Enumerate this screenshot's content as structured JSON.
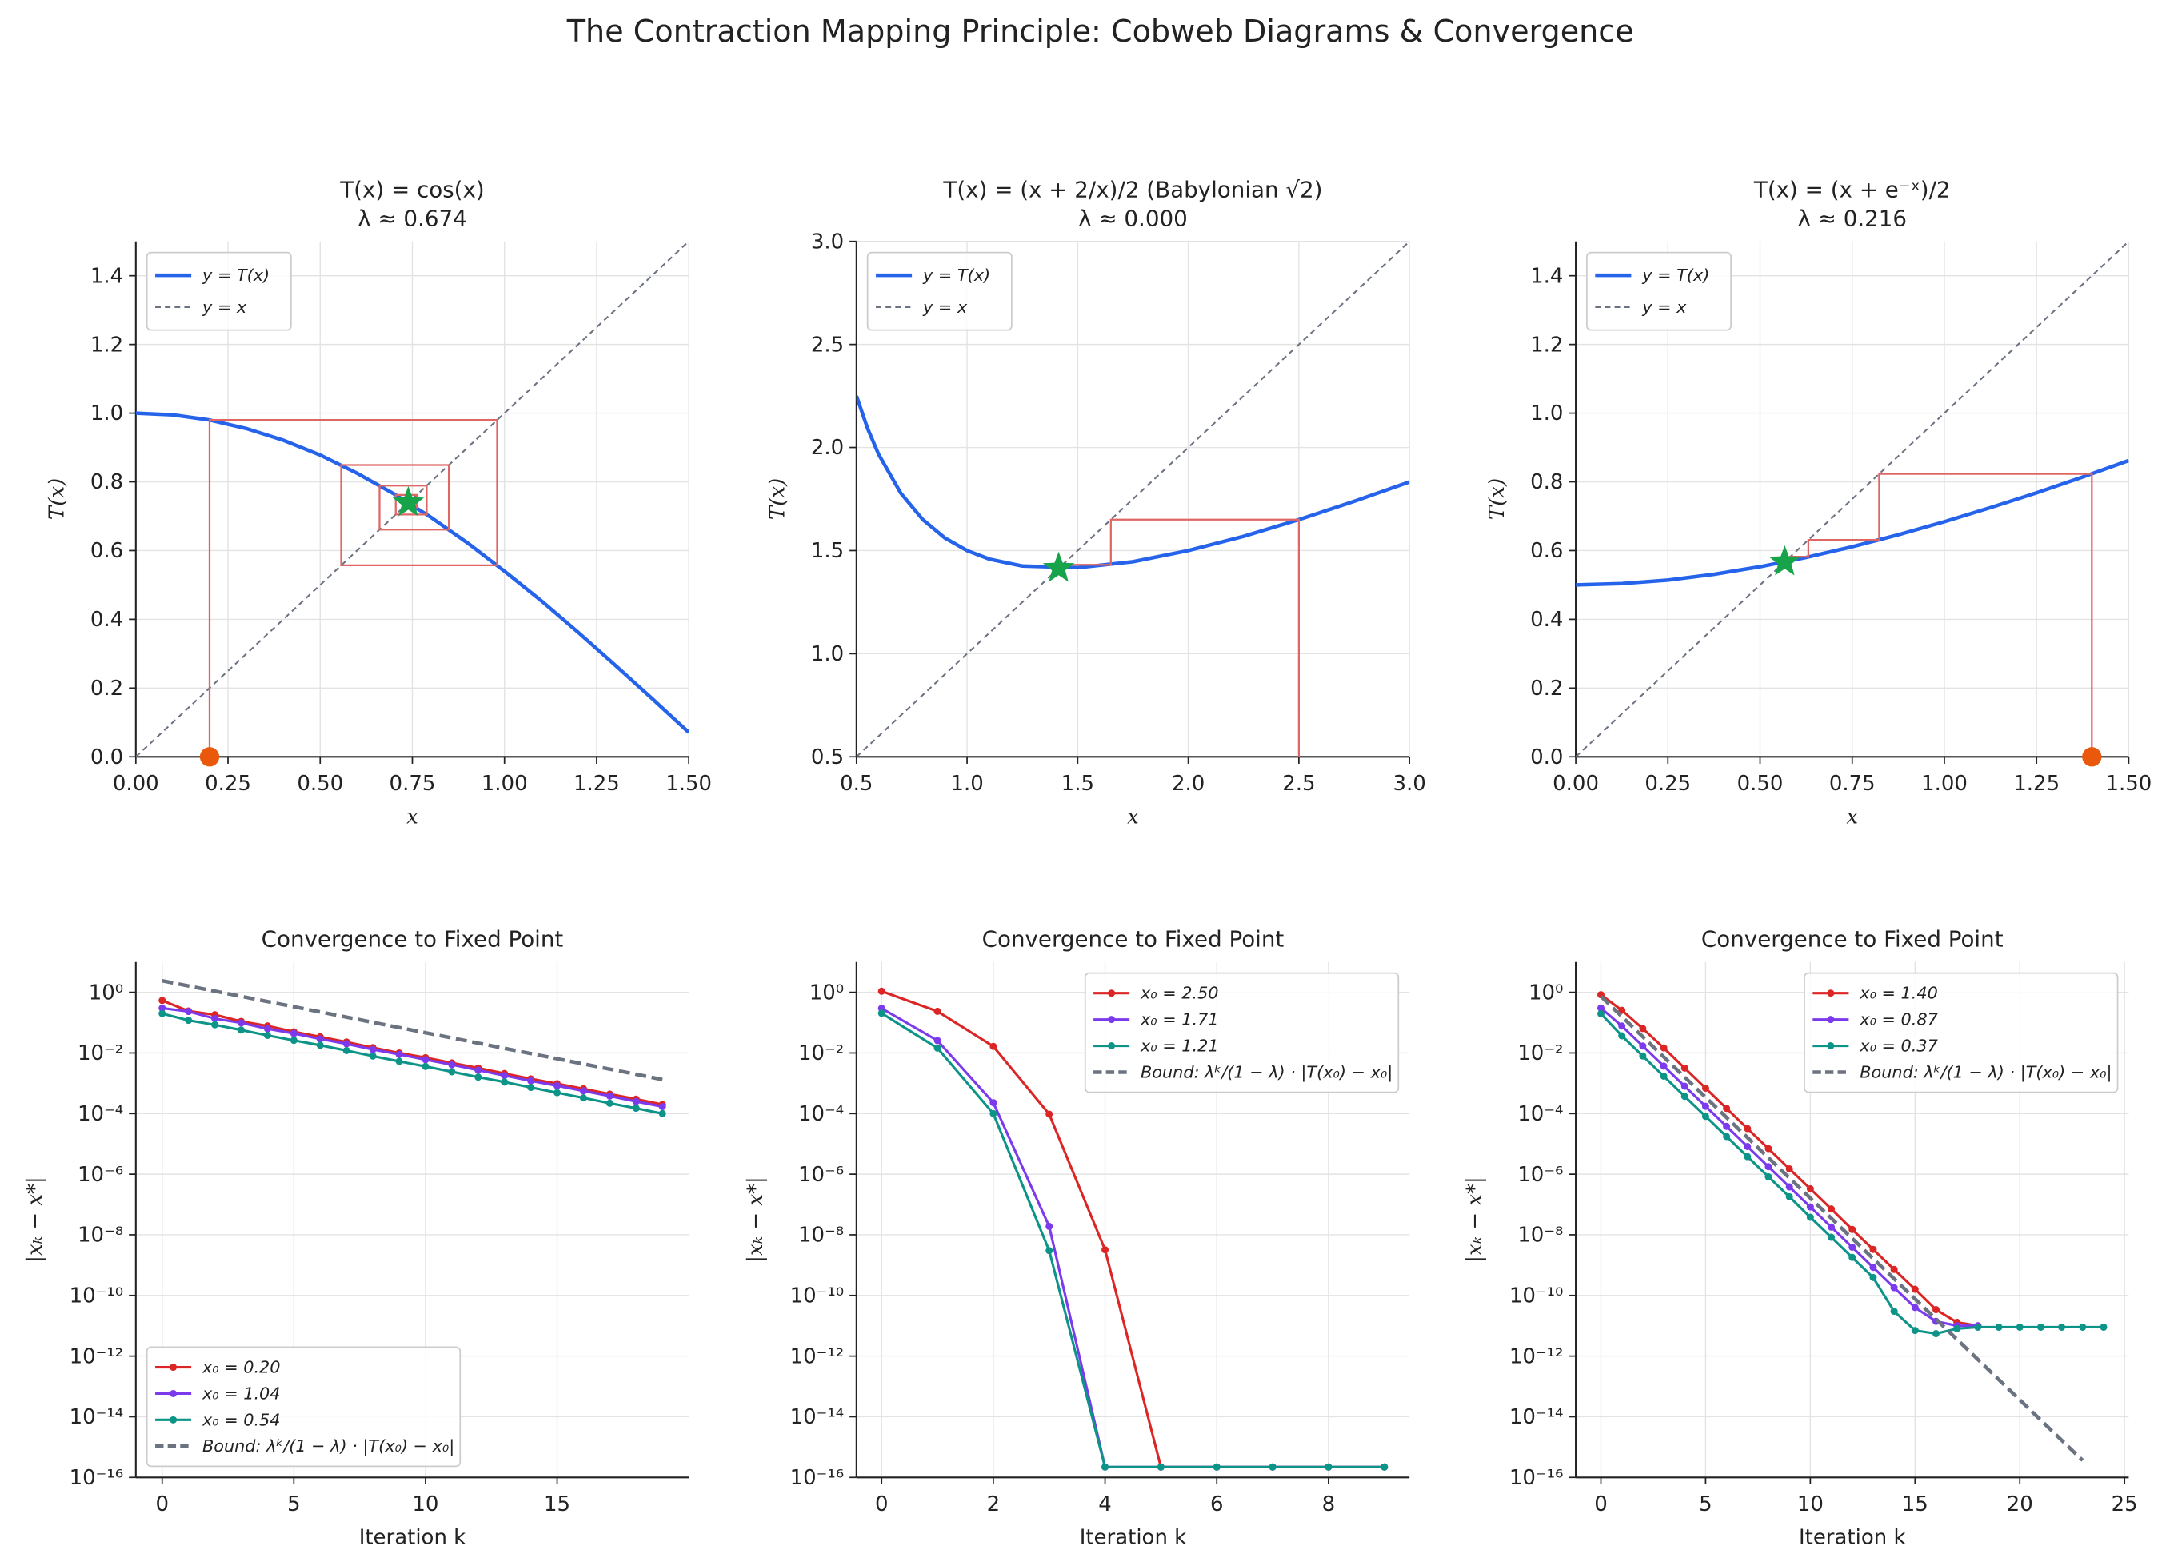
{
  "title": "The Contraction Mapping Principle: Cobweb Diagrams & Convergence",
  "chart_data": [
    {
      "type": "cobweb",
      "title": "T(x) = cos(x)",
      "subtitle": "λ ≈ 0.674",
      "x_label": "x",
      "y_label": "T(x)",
      "xlim": [
        0,
        1.5
      ],
      "ylim": [
        0,
        1.5
      ],
      "xticks": [
        {
          "value": 0,
          "label": "0.00"
        },
        {
          "value": 0.25,
          "label": "0.25"
        },
        {
          "value": 0.5,
          "label": "0.50"
        },
        {
          "value": 0.75,
          "label": "0.75"
        },
        {
          "value": 1,
          "label": "1.00"
        },
        {
          "value": 1.25,
          "label": "1.25"
        },
        {
          "value": 1.5,
          "label": "1.50"
        }
      ],
      "yticks": [
        {
          "value": 0,
          "label": "0.0"
        },
        0.2,
        0.4,
        0.6,
        0.8,
        {
          "value": 1,
          "label": "1.0"
        },
        1.2,
        1.4
      ],
      "grid": true,
      "legend": "upper left",
      "series": [
        {
          "name": "y = T(x)",
          "color": "#2563eb",
          "style": "solid",
          "x": [
            0,
            0.1,
            0.2,
            0.3,
            0.4,
            0.5,
            0.6,
            0.7,
            0.8,
            0.9,
            1.0,
            1.1,
            1.2,
            1.3,
            1.4,
            1.5
          ],
          "values": [
            1.0,
            0.995,
            0.98,
            0.955,
            0.921,
            0.878,
            0.825,
            0.765,
            0.697,
            0.622,
            0.54,
            0.454,
            0.362,
            0.267,
            0.17,
            0.071
          ]
        },
        {
          "name": "y = x",
          "color": "#6b7280",
          "style": "dashed",
          "x": [
            0,
            1.5
          ],
          "values": [
            0,
            1.5
          ]
        }
      ],
      "cobweb": {
        "color": "#e06666",
        "x": [
          0.2,
          0.2,
          0.98,
          0.98,
          0.557,
          0.557,
          0.849,
          0.849,
          0.661,
          0.661,
          0.789,
          0.789,
          0.705,
          0.705,
          0.762,
          0.762
        ],
        "values": [
          0,
          0.98,
          0.98,
          0.557,
          0.557,
          0.849,
          0.849,
          0.661,
          0.661,
          0.789,
          0.789,
          0.705,
          0.705,
          0.762,
          0.762,
          0.723
        ]
      },
      "fixed_point": {
        "x": 0.739,
        "value": 0.739,
        "color": "#16a34a"
      },
      "start": {
        "x": 0.2,
        "value": 0,
        "color": "#ea580c"
      }
    },
    {
      "type": "cobweb",
      "title": "T(x) = (x + 2/x)/2 (Babylonian √2)",
      "subtitle": "λ ≈ 0.000",
      "x_label": "x",
      "y_label": "T(x)",
      "xlim": [
        0.5,
        3
      ],
      "ylim": [
        0.5,
        3
      ],
      "xticks": [
        0.5,
        {
          "value": 1,
          "label": "1.0"
        },
        1.5,
        {
          "value": 2,
          "label": "2.0"
        },
        2.5,
        {
          "value": 3,
          "label": "3.0"
        }
      ],
      "yticks": [
        0.5,
        {
          "value": 1,
          "label": "1.0"
        },
        1.5,
        {
          "value": 2,
          "label": "2.0"
        },
        2.5,
        {
          "value": 3,
          "label": "3.0"
        }
      ],
      "grid": true,
      "legend": "upper left",
      "series": [
        {
          "name": "y = T(x)",
          "color": "#2563eb",
          "style": "solid",
          "x": [
            0.5,
            0.55,
            0.6,
            0.7,
            0.8,
            0.9,
            1.0,
            1.1,
            1.25,
            1.5,
            1.75,
            2.0,
            2.25,
            2.5,
            2.75,
            3.0
          ],
          "values": [
            2.25,
            2.093,
            1.967,
            1.779,
            1.65,
            1.561,
            1.5,
            1.459,
            1.425,
            1.417,
            1.446,
            1.5,
            1.569,
            1.65,
            1.739,
            1.833
          ]
        },
        {
          "name": "y = x",
          "color": "#6b7280",
          "style": "dashed",
          "x": [
            0.5,
            3
          ],
          "values": [
            0.5,
            3
          ]
        }
      ],
      "cobweb": {
        "color": "#e06666",
        "x": [
          2.5,
          2.5,
          1.65,
          1.65,
          1.431,
          1.431,
          1.414
        ],
        "values": [
          0.5,
          1.65,
          1.65,
          1.431,
          1.431,
          1.414,
          1.414
        ]
      },
      "fixed_point": {
        "x": 1.414,
        "value": 1.414,
        "color": "#16a34a"
      }
    },
    {
      "type": "cobweb",
      "title": "T(x) = (x + e⁻ˣ)/2",
      "subtitle": "λ ≈ 0.216",
      "x_label": "x",
      "y_label": "T(x)",
      "xlim": [
        0,
        1.5
      ],
      "ylim": [
        0,
        1.5
      ],
      "xticks": [
        {
          "value": 0,
          "label": "0.00"
        },
        {
          "value": 0.25,
          "label": "0.25"
        },
        {
          "value": 0.5,
          "label": "0.50"
        },
        {
          "value": 0.75,
          "label": "0.75"
        },
        {
          "value": 1,
          "label": "1.00"
        },
        {
          "value": 1.25,
          "label": "1.25"
        },
        {
          "value": 1.5,
          "label": "1.50"
        }
      ],
      "yticks": [
        {
          "value": 0,
          "label": "0.0"
        },
        0.2,
        0.4,
        0.6,
        0.8,
        {
          "value": 1,
          "label": "1.0"
        },
        1.2,
        1.4
      ],
      "grid": true,
      "legend": "upper left",
      "series": [
        {
          "name": "y = T(x)",
          "color": "#2563eb",
          "style": "solid",
          "x": [
            0,
            0.125,
            0.25,
            0.375,
            0.5,
            0.625,
            0.75,
            0.875,
            1.0,
            1.125,
            1.25,
            1.375,
            1.5
          ],
          "values": [
            0.5,
            0.504,
            0.514,
            0.531,
            0.553,
            0.58,
            0.611,
            0.646,
            0.684,
            0.725,
            0.768,
            0.814,
            0.862
          ]
        },
        {
          "name": "y = x",
          "color": "#6b7280",
          "style": "dashed",
          "x": [
            0,
            1.5
          ],
          "values": [
            0,
            1.5
          ]
        }
      ],
      "cobweb": {
        "color": "#e06666",
        "x": [
          1.4,
          1.4,
          0.823,
          0.823,
          0.631,
          0.631,
          0.582,
          0.582
        ],
        "values": [
          0,
          0.823,
          0.823,
          0.631,
          0.631,
          0.582,
          0.582,
          0.57
        ]
      },
      "fixed_point": {
        "x": 0.567,
        "value": 0.567,
        "color": "#16a34a"
      },
      "start": {
        "x": 1.4,
        "value": 0,
        "color": "#ea580c"
      }
    },
    {
      "type": "line",
      "title": "Convergence to Fixed Point",
      "x_label": "Iteration k",
      "y_label": "|xₖ − x*|",
      "yscale": "log",
      "xlim": [
        -1,
        20
      ],
      "ylim": [
        1e-16,
        10
      ],
      "xticks": [
        0,
        5,
        10,
        15
      ],
      "yticks": [
        {
          "value": 1,
          "label": "10⁰"
        },
        {
          "value": 0.01,
          "label": "10⁻²"
        },
        {
          "value": 0.0001,
          "label": "10⁻⁴"
        },
        {
          "value": 1e-06,
          "label": "10⁻⁶"
        },
        {
          "value": 1e-08,
          "label": "10⁻⁸"
        },
        {
          "value": 1e-10,
          "label": "10⁻¹⁰"
        },
        {
          "value": 1e-12,
          "label": "10⁻¹²"
        },
        {
          "value": 1e-14,
          "label": "10⁻¹⁴"
        },
        {
          "value": 1e-16,
          "label": "10⁻¹⁶"
        }
      ],
      "grid": true,
      "legend": "lower left",
      "x": [
        0,
        1,
        2,
        3,
        4,
        5,
        6,
        7,
        8,
        9,
        10,
        11,
        12,
        13,
        14,
        15,
        16,
        17,
        18,
        19
      ],
      "series": [
        {
          "name": "x₀ = 0.20",
          "color": "#dc2626",
          "style": "marker",
          "values": [
            0.539,
            0.241,
            0.182,
            0.11,
            0.078,
            0.05,
            0.034,
            0.023,
            0.015,
            0.01,
            0.007,
            0.0047,
            0.0032,
            0.0021,
            0.0014,
            0.00097,
            0.00066,
            0.00044,
            0.0003,
            0.0002
          ]
        },
        {
          "name": "x₀ = 1.04",
          "color": "#7c3aed",
          "style": "marker",
          "values": [
            0.301,
            0.233,
            0.136,
            0.098,
            0.063,
            0.044,
            0.029,
            0.02,
            0.013,
            0.009,
            0.006,
            0.0041,
            0.0027,
            0.0018,
            0.0012,
            0.00083,
            0.00056,
            0.00038,
            0.00025,
            0.00017
          ]
        },
        {
          "name": "x₀ = 0.54",
          "color": "#0d9488",
          "style": "marker",
          "values": [
            0.199,
            0.119,
            0.085,
            0.057,
            0.038,
            0.026,
            0.018,
            0.012,
            0.0079,
            0.0053,
            0.0036,
            0.0024,
            0.0016,
            0.0011,
            0.00073,
            0.00049,
            0.00033,
            0.00022,
            0.00015,
            0.0001
          ]
        },
        {
          "name": "Bound: λᵏ/(1 − λ) · |T(x₀) − x₀|",
          "color": "#6b7280",
          "style": "dashed",
          "values": [
            2.4,
            1.62,
            1.09,
            0.735,
            0.495,
            0.334,
            0.225,
            0.152,
            0.102,
            0.0689,
            0.0464,
            0.0313,
            0.0211,
            0.0142,
            0.00958,
            0.00646,
            0.00435,
            0.00293,
            0.00198,
            0.00133
          ]
        }
      ]
    },
    {
      "type": "line",
      "title": "Convergence to Fixed Point",
      "x_label": "Iteration k",
      "y_label": "|xₖ − x*|",
      "yscale": "log",
      "xlim": [
        -0.45,
        9.45
      ],
      "ylim": [
        1e-16,
        10
      ],
      "xticks": [
        0,
        2,
        4,
        6,
        8
      ],
      "yticks": [
        {
          "value": 1,
          "label": "10⁰"
        },
        {
          "value": 0.01,
          "label": "10⁻²"
        },
        {
          "value": 0.0001,
          "label": "10⁻⁴"
        },
        {
          "value": 1e-06,
          "label": "10⁻⁶"
        },
        {
          "value": 1e-08,
          "label": "10⁻⁸"
        },
        {
          "value": 1e-10,
          "label": "10⁻¹⁰"
        },
        {
          "value": 1e-12,
          "label": "10⁻¹²"
        },
        {
          "value": 1e-14,
          "label": "10⁻¹⁴"
        },
        {
          "value": 1e-16,
          "label": "10⁻¹⁶"
        }
      ],
      "grid": true,
      "legend": "upper right",
      "x": [
        0,
        1,
        2,
        3,
        4,
        5,
        6,
        7,
        8,
        9
      ],
      "series": [
        {
          "name": "x₀ = 2.50",
          "color": "#dc2626",
          "style": "marker",
          "values": [
            1.086,
            0.236,
            0.0165,
            9.6e-05,
            3.2e-09,
            2.2e-16,
            2.2e-16,
            2.2e-16,
            2.2e-16,
            2.2e-16
          ]
        },
        {
          "name": "x₀ = 1.71",
          "color": "#7c3aed",
          "style": "marker",
          "values": [
            0.296,
            0.0257,
            0.00023,
            1.9e-08,
            2.2e-16,
            2.2e-16,
            2.2e-16,
            2.2e-16,
            2.2e-16,
            2.2e-16
          ]
        },
        {
          "name": "x₀ = 1.21",
          "color": "#0d9488",
          "style": "marker",
          "values": [
            0.204,
            0.0145,
            0.0001,
            3e-09,
            2.2e-16,
            2.2e-16,
            2.2e-16,
            2.2e-16,
            2.2e-16,
            2.2e-16
          ]
        },
        {
          "name": "Bound: λᵏ/(1 − λ) · |T(x₀) − x₀|",
          "color": "#6b7280",
          "style": "dashed",
          "values": [
            null,
            null,
            null,
            null,
            null,
            null,
            null,
            null,
            null,
            null
          ]
        }
      ]
    },
    {
      "type": "line",
      "title": "Convergence to Fixed Point",
      "x_label": "Iteration k",
      "y_label": "|xₖ − x*|",
      "yscale": "log",
      "xlim": [
        -1.2,
        25.2
      ],
      "ylim": [
        1e-16,
        10
      ],
      "xticks": [
        0,
        5,
        10,
        15,
        20,
        25
      ],
      "yticks": [
        {
          "value": 1,
          "label": "10⁰"
        },
        {
          "value": 0.01,
          "label": "10⁻²"
        },
        {
          "value": 0.0001,
          "label": "10⁻⁴"
        },
        {
          "value": 1e-06,
          "label": "10⁻⁶"
        },
        {
          "value": 1e-08,
          "label": "10⁻⁸"
        },
        {
          "value": 1e-10,
          "label": "10⁻¹⁰"
        },
        {
          "value": 1e-12,
          "label": "10⁻¹²"
        },
        {
          "value": 1e-14,
          "label": "10⁻¹⁴"
        },
        {
          "value": 1e-16,
          "label": "10⁻¹⁶"
        }
      ],
      "grid": true,
      "legend": "upper right",
      "x": [
        0,
        1,
        2,
        3,
        4,
        5,
        6,
        7,
        8,
        9,
        10,
        11,
        12,
        13,
        14,
        15,
        16,
        17,
        18,
        19,
        20,
        21,
        22,
        23,
        24
      ],
      "series": [
        {
          "name": "x₀ = 1.40",
          "color": "#dc2626",
          "style": "marker",
          "values": [
            0.833,
            0.256,
            0.064,
            0.0147,
            0.00318,
            0.00069,
            0.000149,
            3.2e-05,
            7e-06,
            1.5e-06,
            3.3e-07,
            7.1e-08,
            1.5e-08,
            3.3e-09,
            7.2e-10,
            1.6e-10,
            3.4e-11,
            1.3e-11,
            1e-11,
            null,
            null,
            null,
            null,
            null,
            null
          ]
        },
        {
          "name": "x₀ = 0.87",
          "color": "#7c3aed",
          "style": "marker",
          "values": [
            0.303,
            0.0774,
            0.017,
            0.0037,
            0.0008,
            0.000174,
            3.8e-05,
            8.2e-06,
            1.77e-06,
            3.8e-07,
            8.3e-08,
            1.8e-08,
            3.9e-09,
            8.4e-10,
            1.8e-10,
            4e-11,
            1.4e-11,
            1e-11,
            1e-11,
            null,
            null,
            null,
            null,
            null,
            null
          ]
        },
        {
          "name": "x₀ = 0.37",
          "color": "#0d9488",
          "style": "marker",
          "values": [
            0.197,
            0.0367,
            0.00795,
            0.00172,
            0.00037,
            8.1e-05,
            1.75e-05,
            3.8e-06,
            8.2e-07,
            1.8e-07,
            3.8e-08,
            8.3e-09,
            1.8e-09,
            3.9e-10,
            3e-11,
            7e-12,
            5.5e-12,
            8e-12,
            9e-12,
            9e-12,
            9e-12,
            9e-12,
            9e-12,
            9e-12,
            9e-12
          ]
        },
        {
          "name": "Bound: λᵏ/(1 − λ) · |T(x₀) − x₀|",
          "color": "#6b7280",
          "style": "dashed",
          "values": [
            0.736,
            0.159,
            0.0343,
            0.00742,
            0.0016,
            0.000346,
            7.48e-05,
            1.62e-05,
            3.49e-06,
            7.54e-07,
            1.63e-07,
            3.52e-08,
            7.6e-09,
            1.64e-09,
            3.55e-10,
            7.66e-11,
            1.65e-11,
            3.57e-12,
            7.72e-13,
            1.67e-13,
            3.6e-14,
            7.78e-15,
            1.68e-15,
            3.63e-16,
            null
          ]
        }
      ]
    }
  ]
}
